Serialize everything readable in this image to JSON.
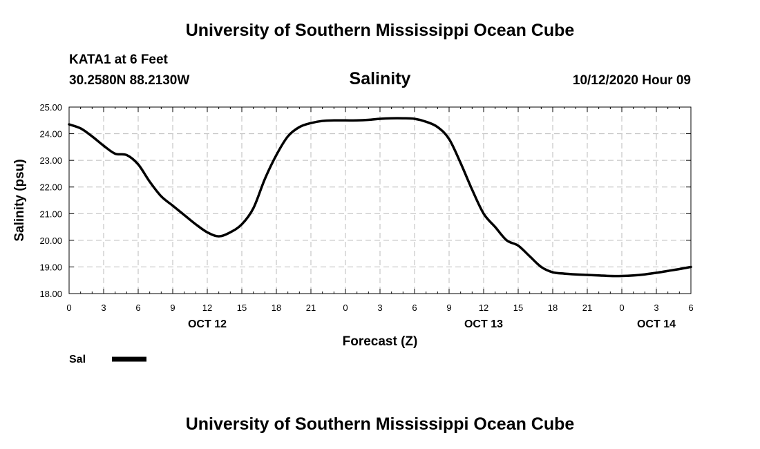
{
  "header": {
    "title": "University of Southern Mississippi Ocean Cube",
    "station": "KATA1 at 6 Feet",
    "coords": "30.2580N 88.2130W",
    "datetime": "10/12/2020 Hour 09"
  },
  "footer": {
    "title": "University of Southern Mississippi Ocean Cube"
  },
  "colors": {
    "line": "#000000",
    "grid": "#bbbbbb"
  },
  "chart_data": {
    "type": "line",
    "title": "Salinity",
    "xlabel": "Forecast (Z)",
    "ylabel": "Salinity (psu)",
    "ylim": [
      18,
      25
    ],
    "xlim": [
      0,
      54
    ],
    "grid": true,
    "legend": {
      "position": "bottom-left",
      "entries": [
        "Sal"
      ]
    },
    "y_ticks": [
      {
        "value": 18,
        "label": "18.00"
      },
      {
        "value": 19,
        "label": "19.00"
      },
      {
        "value": 20,
        "label": "20.00"
      },
      {
        "value": 21,
        "label": "21.00"
      },
      {
        "value": 22,
        "label": "22.00"
      },
      {
        "value": 23,
        "label": "23.00"
      },
      {
        "value": 24,
        "label": "24.00"
      },
      {
        "value": 25,
        "label": "25.00"
      }
    ],
    "x_ticks": [
      {
        "value": 0,
        "label": "0"
      },
      {
        "value": 3,
        "label": "3"
      },
      {
        "value": 6,
        "label": "6"
      },
      {
        "value": 9,
        "label": "9"
      },
      {
        "value": 12,
        "label": "12"
      },
      {
        "value": 15,
        "label": "15"
      },
      {
        "value": 18,
        "label": "18"
      },
      {
        "value": 21,
        "label": "21"
      },
      {
        "value": 24,
        "label": "0"
      },
      {
        "value": 27,
        "label": "3"
      },
      {
        "value": 30,
        "label": "6"
      },
      {
        "value": 33,
        "label": "9"
      },
      {
        "value": 36,
        "label": "12"
      },
      {
        "value": 39,
        "label": "15"
      },
      {
        "value": 42,
        "label": "18"
      },
      {
        "value": 45,
        "label": "21"
      },
      {
        "value": 48,
        "label": "0"
      },
      {
        "value": 51,
        "label": "3"
      },
      {
        "value": 54,
        "label": "6"
      }
    ],
    "day_labels": [
      {
        "value": 12,
        "label": "OCT 12"
      },
      {
        "value": 36,
        "label": "OCT 13"
      },
      {
        "value": 51,
        "label": "OCT 14"
      }
    ],
    "series": [
      {
        "name": "Sal",
        "x": [
          0,
          1,
          2,
          3,
          4,
          5,
          6,
          7,
          8,
          9,
          10,
          11,
          12,
          13,
          14,
          15,
          16,
          17,
          18,
          19,
          20,
          21,
          22,
          23,
          24,
          25,
          26,
          27,
          28,
          29,
          30,
          31,
          32,
          33,
          34,
          35,
          36,
          37,
          38,
          39,
          40,
          41,
          42,
          43,
          44,
          45,
          46,
          47,
          48,
          49,
          50,
          51,
          52,
          53,
          54
        ],
        "values": [
          24.35,
          24.2,
          23.9,
          23.55,
          23.25,
          23.2,
          22.85,
          22.2,
          21.65,
          21.3,
          20.95,
          20.6,
          20.3,
          20.15,
          20.3,
          20.6,
          21.2,
          22.3,
          23.2,
          23.9,
          24.25,
          24.4,
          24.48,
          24.5,
          24.5,
          24.5,
          24.52,
          24.56,
          24.58,
          24.58,
          24.56,
          24.45,
          24.25,
          23.8,
          22.9,
          21.9,
          21.0,
          20.5,
          20.0,
          19.8,
          19.4,
          19.0,
          18.8,
          18.75,
          18.72,
          18.7,
          18.68,
          18.66,
          18.66,
          18.68,
          18.72,
          18.78,
          18.85,
          18.92,
          19.0
        ]
      }
    ]
  }
}
